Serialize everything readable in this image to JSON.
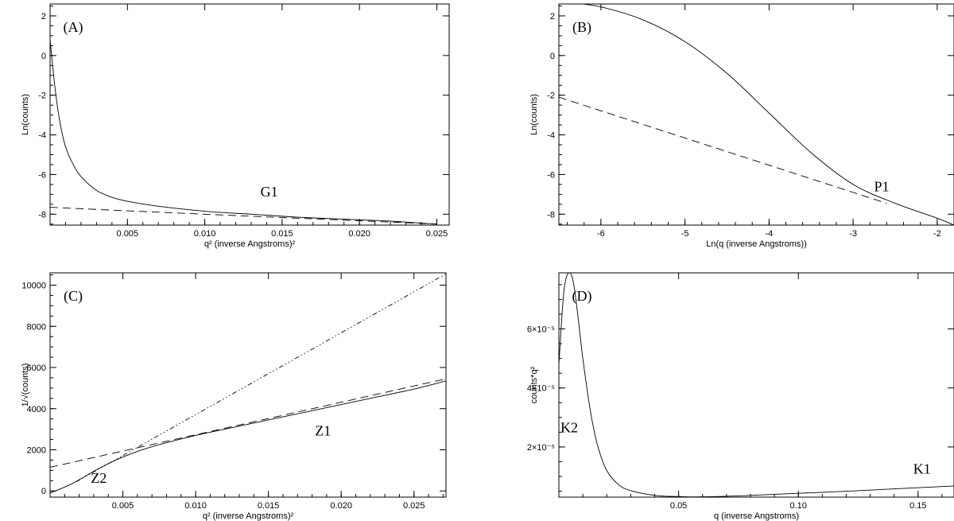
{
  "chart_data": [
    {
      "type": "line",
      "panel_label": "(A)",
      "xlabel": "q² (inverse Angstroms)²",
      "ylabel": "Ln(counts)",
      "xlim": [
        0.0,
        0.0258
      ],
      "ylim": [
        -8.55,
        2.6
      ],
      "xticks": [
        0.005,
        0.01,
        0.015,
        0.02,
        0.025
      ],
      "xticklabels": [
        "0.005",
        "0.010",
        "0.015",
        "0.020",
        "0.025"
      ],
      "yticks": [
        -8,
        -6,
        -4,
        -2,
        0,
        2
      ],
      "yticklabels": [
        "-8",
        "-6",
        "-4",
        "-2",
        "0",
        "2"
      ],
      "series": [
        {
          "style": "solid",
          "x": [
            0.0,
            0.0003,
            0.0006,
            0.001,
            0.0015,
            0.002,
            0.003,
            0.004,
            0.005,
            0.007,
            0.01,
            0.013,
            0.016,
            0.019,
            0.022,
            0.025
          ],
          "y": [
            0.8,
            -1.5,
            -3.2,
            -4.6,
            -5.5,
            -6.1,
            -6.8,
            -7.15,
            -7.35,
            -7.6,
            -7.85,
            -8.0,
            -8.15,
            -8.25,
            -8.35,
            -8.5
          ]
        },
        {
          "style": "dashed",
          "x": [
            0.0,
            0.005,
            0.01,
            0.015,
            0.02,
            0.025
          ],
          "y": [
            -7.65,
            -7.83,
            -8.0,
            -8.17,
            -8.33,
            -8.5
          ]
        }
      ],
      "annotations": [
        {
          "text": "G1",
          "x": 0.0136,
          "y": -7.1
        }
      ]
    },
    {
      "type": "line",
      "panel_label": "(B)",
      "xlabel": "Ln(q (inverse Angstroms))",
      "ylabel": "Ln(counts)",
      "xlim": [
        -6.5,
        -1.8
      ],
      "ylim": [
        -8.55,
        2.6
      ],
      "xticks": [
        -6,
        -5,
        -4,
        -3,
        -2
      ],
      "xticklabels": [
        "-6",
        "-5",
        "-4",
        "-3",
        "-2"
      ],
      "yticks": [
        -8,
        -6,
        -4,
        -2,
        0,
        2
      ],
      "yticklabels": [
        "-8",
        "-6",
        "-4",
        "-2",
        "0",
        "2"
      ],
      "series": [
        {
          "style": "solid",
          "x": [
            -6.5,
            -6.0,
            -5.5,
            -5.0,
            -4.5,
            -4.0,
            -3.5,
            -3.0,
            -2.5,
            -2.0,
            -1.8
          ],
          "y": [
            2.75,
            2.45,
            1.8,
            0.7,
            -0.9,
            -2.9,
            -4.9,
            -6.5,
            -7.45,
            -8.2,
            -8.55
          ]
        },
        {
          "style": "dashed",
          "x": [
            -6.5,
            -2.6
          ],
          "y": [
            -2.1,
            -7.45
          ]
        }
      ],
      "annotations": [
        {
          "text": "P1",
          "x": -2.75,
          "y": -6.85
        }
      ]
    },
    {
      "type": "line",
      "panel_label": "(C)",
      "xlabel": "q² (inverse Angstroms)²",
      "ylabel": "1/√(counts)",
      "xlim": [
        0.0,
        0.0272
      ],
      "ylim": [
        -300,
        10600
      ],
      "xticks": [
        0.005,
        0.01,
        0.015,
        0.02,
        0.025
      ],
      "xticklabels": [
        "0.005",
        "0.010",
        "0.015",
        "0.020",
        "0.025"
      ],
      "yticks": [
        0,
        2000,
        4000,
        6000,
        8000,
        10000
      ],
      "yticklabels": [
        "0",
        "2000",
        "4000",
        "6000",
        "8000",
        "10000"
      ],
      "series": [
        {
          "style": "solid",
          "x": [
            0.0,
            0.0007,
            0.0015,
            0.0025,
            0.0035,
            0.005,
            0.007,
            0.01,
            0.013,
            0.016,
            0.019,
            0.022,
            0.025,
            0.0272
          ],
          "y": [
            -100,
            100,
            350,
            750,
            1150,
            1650,
            2150,
            2700,
            3150,
            3600,
            4050,
            4500,
            4950,
            5350
          ]
        },
        {
          "style": "dashed",
          "x": [
            0.0,
            0.0272
          ],
          "y": [
            1150,
            5450
          ]
        },
        {
          "style": "dashdot",
          "x": [
            0.0018,
            0.0272
          ],
          "y": [
            450,
            10550
          ]
        }
      ],
      "annotations": [
        {
          "text": "Z1",
          "x": 0.0182,
          "y": 2700
        },
        {
          "text": "Z2",
          "x": 0.0028,
          "y": 400
        }
      ]
    },
    {
      "type": "line",
      "panel_label": "(D)",
      "xlabel": "q (inverse Angstroms)",
      "ylabel": "counts*q²",
      "xlim": [
        0.0,
        0.165
      ],
      "ylim": [
        3e-06,
        7.9e-05
      ],
      "xticks": [
        0.05,
        0.1,
        0.15
      ],
      "xticklabels": [
        "0.05",
        "0.10",
        "0.15"
      ],
      "yticks": [
        2e-05,
        4e-05,
        6e-05
      ],
      "yticklabels": [
        "2×10⁻⁵",
        "4×10⁻⁵",
        "6×10⁻⁵"
      ],
      "series": [
        {
          "style": "solid",
          "x": [
            0.0,
            0.002,
            0.004,
            0.006,
            0.008,
            0.01,
            0.013,
            0.016,
            0.02,
            0.025,
            0.03,
            0.04,
            0.05,
            0.06,
            0.08,
            0.1,
            0.12,
            0.14,
            0.165
          ],
          "y": [
            4.8e-05,
            7.2e-05,
            7.9e-05,
            7.6e-05,
            6.4e-05,
            5e-05,
            3.3e-05,
            2.1e-05,
            1.2e-05,
            7.2e-06,
            5.2e-06,
            3.6e-06,
            3.2e-06,
            3.1e-06,
            3.6e-06,
            4.3e-06,
            5e-06,
            5.8e-06,
            6.8e-06
          ]
        }
      ],
      "annotations": [
        {
          "text": "K2",
          "x": 0.0,
          "y": 2.5e-05
        },
        {
          "text": "K1",
          "x": 0.148,
          "y": 1.1e-05
        }
      ]
    }
  ]
}
